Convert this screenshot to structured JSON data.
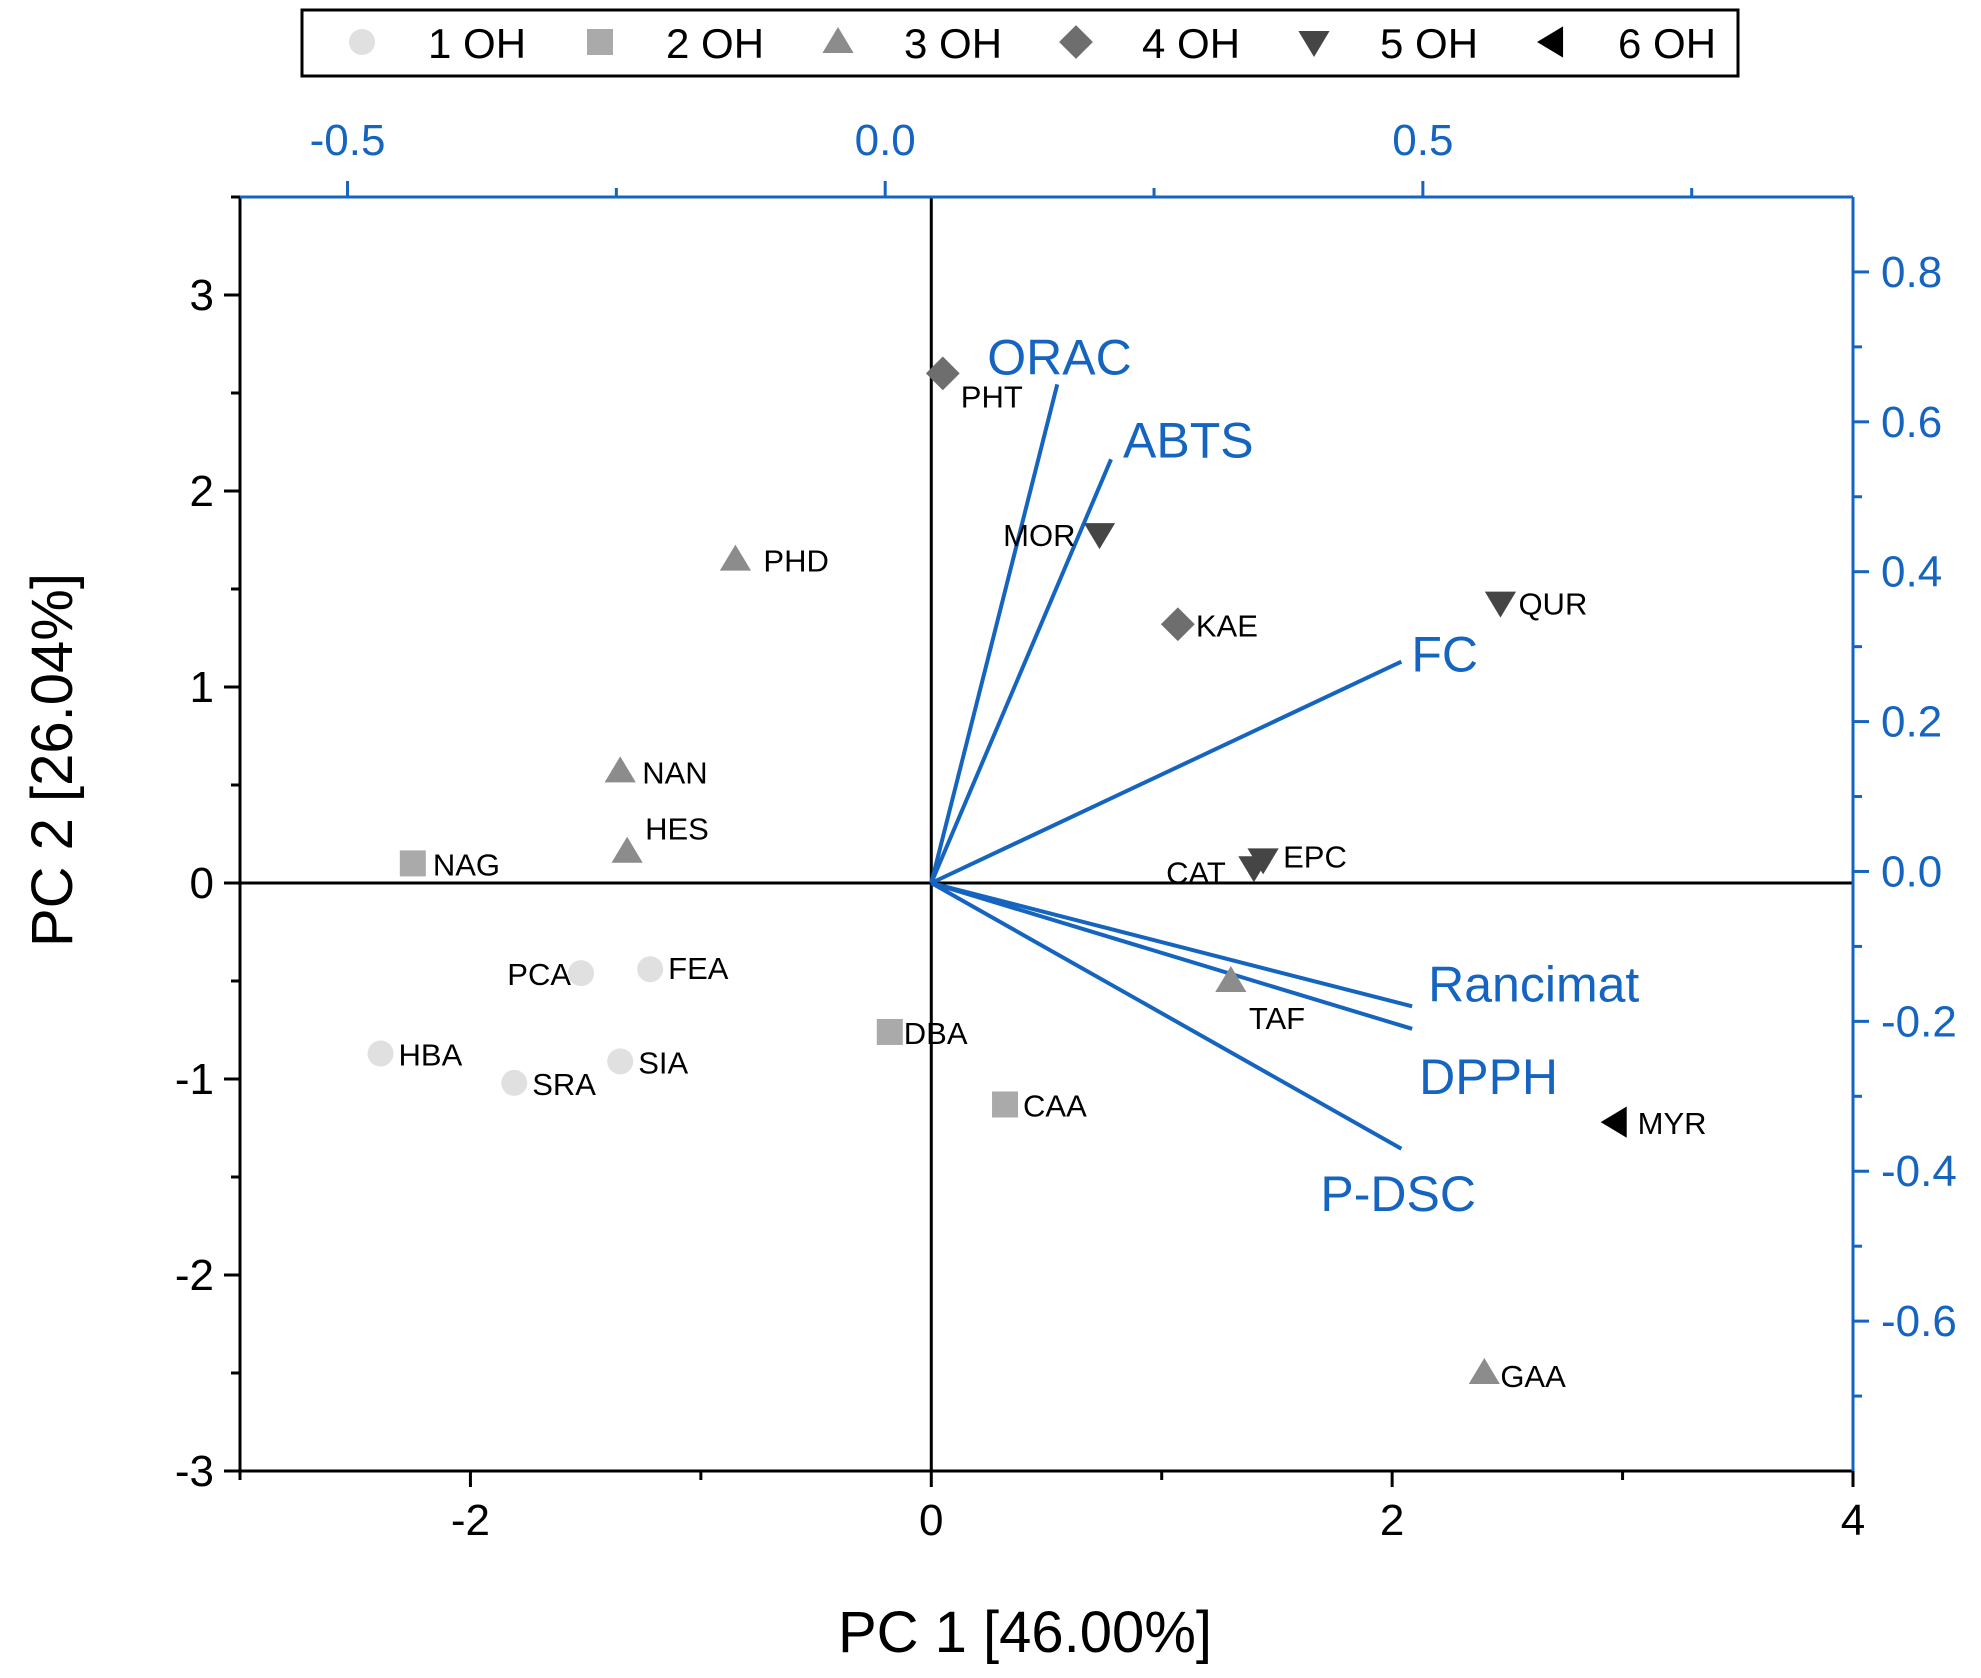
{
  "chart_data": {
    "type": "scatter",
    "subtype": "biplot",
    "xlabel": "PC 1 [46.00%]",
    "ylabel": "PC 2 [26.04%]",
    "xlim": [
      -3,
      4
    ],
    "ylim": [
      -3,
      3.5
    ],
    "xticks": [
      -2,
      0,
      2,
      4
    ],
    "xtick_labels": [
      "-2",
      "0",
      "2",
      "4"
    ],
    "yticks": [
      -3,
      -2,
      -1,
      0,
      1,
      2,
      3
    ],
    "ytick_labels": [
      "-3",
      "-2",
      "-1",
      "0",
      "1",
      "2",
      "3"
    ],
    "loading_axes": {
      "color": "#1565C0",
      "top": {
        "lim": [
          -0.6,
          0.9
        ],
        "ticks": [
          -0.5,
          0.0,
          0.5
        ],
        "tick_labels": [
          "-0.5",
          "0.0",
          "0.5"
        ]
      },
      "right": {
        "lim": [
          -0.8,
          0.9
        ],
        "ticks": [
          -0.6,
          -0.4,
          -0.2,
          0.0,
          0.2,
          0.4,
          0.6,
          0.8
        ],
        "tick_labels": [
          "-0.6",
          "-0.4",
          "-0.2",
          "0.0",
          "0.2",
          "0.4",
          "0.6",
          "0.8"
        ]
      }
    },
    "legend": {
      "position": "top",
      "entries": [
        {
          "key": "1OH",
          "label": "1 OH",
          "marker": "circle",
          "color": "#e0e0e0"
        },
        {
          "key": "2OH",
          "label": "2 OH",
          "marker": "square",
          "color": "#aaaaaa"
        },
        {
          "key": "3OH",
          "label": "3 OH",
          "marker": "triangle-up",
          "color": "#8c8c8c"
        },
        {
          "key": "4OH",
          "label": "4 OH",
          "marker": "diamond",
          "color": "#6e6e6e"
        },
        {
          "key": "5OH",
          "label": "5 OH",
          "marker": "triangle-down",
          "color": "#454545"
        },
        {
          "key": "6OH",
          "label": "6 OH",
          "marker": "triangle-left",
          "color": "#000000"
        }
      ]
    },
    "scores": [
      {
        "label": "PHT",
        "group": "4OH",
        "x": 0.05,
        "y": 2.6
      },
      {
        "label": "PHD",
        "group": "3OH",
        "x": -0.85,
        "y": 1.65
      },
      {
        "label": "MOR",
        "group": "5OH",
        "x": 0.73,
        "y": 1.78
      },
      {
        "label": "KAE",
        "group": "4OH",
        "x": 1.07,
        "y": 1.32
      },
      {
        "label": "QUR",
        "group": "5OH",
        "x": 2.47,
        "y": 1.43
      },
      {
        "label": "NAN",
        "group": "3OH",
        "x": -1.35,
        "y": 0.57
      },
      {
        "label": "HES",
        "group": "3OH",
        "x": -1.32,
        "y": 0.16
      },
      {
        "label": "NAG",
        "group": "2OH",
        "x": -2.25,
        "y": 0.1
      },
      {
        "label": "CAT",
        "group": "5OH",
        "x": 1.4,
        "y": 0.08
      },
      {
        "label": "EPC",
        "group": "5OH",
        "x": 1.44,
        "y": 0.12
      },
      {
        "label": "PCA",
        "group": "1OH",
        "x": -1.52,
        "y": -0.46
      },
      {
        "label": "FEA",
        "group": "1OH",
        "x": -1.22,
        "y": -0.44
      },
      {
        "label": "TAF",
        "group": "3OH",
        "x": 1.3,
        "y": -0.5
      },
      {
        "label": "DBA",
        "group": "2OH",
        "x": -0.18,
        "y": -0.76
      },
      {
        "label": "HBA",
        "group": "1OH",
        "x": -2.39,
        "y": -0.87
      },
      {
        "label": "SIA",
        "group": "1OH",
        "x": -1.35,
        "y": -0.91
      },
      {
        "label": "SRA",
        "group": "1OH",
        "x": -1.81,
        "y": -1.02
      },
      {
        "label": "CAA",
        "group": "2OH",
        "x": 0.32,
        "y": -1.13
      },
      {
        "label": "MYR",
        "group": "6OH",
        "x": 2.97,
        "y": -1.22
      },
      {
        "label": "GAA",
        "group": "3OH",
        "x": 2.4,
        "y": -2.5
      }
    ],
    "loadings": [
      {
        "label": "ORAC",
        "x": 0.16,
        "y": 0.65
      },
      {
        "label": "ABTS",
        "x": 0.21,
        "y": 0.55
      },
      {
        "label": "FC",
        "x": 0.48,
        "y": 0.28
      },
      {
        "label": "Rancimat",
        "x": 0.49,
        "y": -0.18
      },
      {
        "label": "DPPH",
        "x": 0.49,
        "y": -0.21
      },
      {
        "label": "P-DSC",
        "x": 0.48,
        "y": -0.37
      }
    ]
  }
}
